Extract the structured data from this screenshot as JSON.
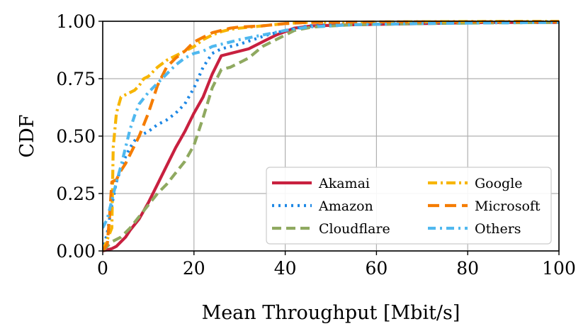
{
  "chart_data": {
    "type": "line",
    "xlabel": "Mean Throughput [Mbit/s]",
    "ylabel": "CDF",
    "xlim": [
      0,
      100
    ],
    "ylim": [
      0,
      1
    ],
    "x_ticks": [
      0,
      20,
      40,
      60,
      80,
      100
    ],
    "x_tick_labels": [
      "0",
      "20",
      "40",
      "60",
      "80",
      "100"
    ],
    "y_ticks": [
      0,
      0.25,
      0.5,
      0.75,
      1.0
    ],
    "y_tick_labels": [
      "0.00",
      "0.25",
      "0.50",
      "0.75",
      "1.00"
    ],
    "grid": true,
    "legend_position": "lower-right",
    "series": [
      {
        "name": "Akamai",
        "color": "#c8203f",
        "dash": "solid",
        "points": [
          [
            0,
            0
          ],
          [
            1,
            0.005
          ],
          [
            2,
            0.01
          ],
          [
            3,
            0.02
          ],
          [
            4,
            0.04
          ],
          [
            5,
            0.06
          ],
          [
            6,
            0.09
          ],
          [
            8,
            0.14
          ],
          [
            10,
            0.21
          ],
          [
            12,
            0.29
          ],
          [
            14,
            0.37
          ],
          [
            16,
            0.45
          ],
          [
            18,
            0.52
          ],
          [
            20,
            0.6
          ],
          [
            22,
            0.67
          ],
          [
            24,
            0.77
          ],
          [
            26,
            0.85
          ],
          [
            28,
            0.86
          ],
          [
            30,
            0.87
          ],
          [
            32,
            0.88
          ],
          [
            35,
            0.91
          ],
          [
            38,
            0.94
          ],
          [
            42,
            0.97
          ],
          [
            46,
            0.98
          ],
          [
            55,
            0.985
          ],
          [
            70,
            0.99
          ],
          [
            85,
            0.995
          ],
          [
            100,
            0.995
          ]
        ]
      },
      {
        "name": "Amazon",
        "color": "#1e88e5",
        "dash": "dotted",
        "points": [
          [
            0,
            0
          ],
          [
            1,
            0.08
          ],
          [
            2,
            0.2
          ],
          [
            3,
            0.3
          ],
          [
            4,
            0.36
          ],
          [
            5,
            0.41
          ],
          [
            6,
            0.45
          ],
          [
            7,
            0.48
          ],
          [
            8,
            0.5
          ],
          [
            10,
            0.52
          ],
          [
            12,
            0.55
          ],
          [
            14,
            0.57
          ],
          [
            16,
            0.6
          ],
          [
            18,
            0.64
          ],
          [
            20,
            0.71
          ],
          [
            22,
            0.8
          ],
          [
            24,
            0.86
          ],
          [
            26,
            0.88
          ],
          [
            28,
            0.89
          ],
          [
            30,
            0.9
          ],
          [
            33,
            0.92
          ],
          [
            36,
            0.94
          ],
          [
            40,
            0.96
          ],
          [
            45,
            0.98
          ],
          [
            55,
            0.99
          ],
          [
            70,
            0.995
          ],
          [
            100,
            0.998
          ]
        ]
      },
      {
        "name": "Cloudflare",
        "color": "#8fa960",
        "dash": "dashed",
        "points": [
          [
            0,
            0
          ],
          [
            1,
            0.02
          ],
          [
            2,
            0.04
          ],
          [
            4,
            0.06
          ],
          [
            6,
            0.1
          ],
          [
            8,
            0.15
          ],
          [
            10,
            0.2
          ],
          [
            12,
            0.25
          ],
          [
            14,
            0.29
          ],
          [
            16,
            0.34
          ],
          [
            18,
            0.39
          ],
          [
            20,
            0.46
          ],
          [
            22,
            0.58
          ],
          [
            24,
            0.71
          ],
          [
            26,
            0.79
          ],
          [
            28,
            0.8
          ],
          [
            30,
            0.82
          ],
          [
            32,
            0.84
          ],
          [
            35,
            0.89
          ],
          [
            38,
            0.92
          ],
          [
            42,
            0.96
          ],
          [
            46,
            0.975
          ],
          [
            55,
            0.985
          ],
          [
            70,
            0.99
          ],
          [
            85,
            0.993
          ],
          [
            100,
            0.995
          ]
        ]
      },
      {
        "name": "Google",
        "color": "#f7b500",
        "dash": "dashdot",
        "points": [
          [
            0,
            0
          ],
          [
            1,
            0.05
          ],
          [
            2,
            0.1
          ],
          [
            2.3,
            0.45
          ],
          [
            3,
            0.6
          ],
          [
            4,
            0.67
          ],
          [
            5,
            0.68
          ],
          [
            6,
            0.69
          ],
          [
            7,
            0.7
          ],
          [
            8,
            0.72
          ],
          [
            9,
            0.75
          ],
          [
            10,
            0.76
          ],
          [
            12,
            0.8
          ],
          [
            14,
            0.83
          ],
          [
            16,
            0.85
          ],
          [
            18,
            0.87
          ],
          [
            20,
            0.89
          ],
          [
            22,
            0.92
          ],
          [
            24,
            0.94
          ],
          [
            26,
            0.955
          ],
          [
            28,
            0.965
          ],
          [
            30,
            0.97
          ],
          [
            35,
            0.98
          ],
          [
            40,
            0.99
          ],
          [
            45,
            0.995
          ],
          [
            60,
            0.997
          ],
          [
            80,
            0.999
          ],
          [
            100,
            1.0
          ]
        ]
      },
      {
        "name": "Microsoft",
        "color": "#f57c00",
        "dash": "longdash",
        "points": [
          [
            0,
            0
          ],
          [
            1,
            0.03
          ],
          [
            1.5,
            0.15
          ],
          [
            2,
            0.3
          ],
          [
            3,
            0.31
          ],
          [
            4,
            0.35
          ],
          [
            5,
            0.38
          ],
          [
            6,
            0.42
          ],
          [
            8,
            0.5
          ],
          [
            10,
            0.6
          ],
          [
            12,
            0.72
          ],
          [
            14,
            0.8
          ],
          [
            16,
            0.84
          ],
          [
            18,
            0.87
          ],
          [
            20,
            0.91
          ],
          [
            22,
            0.93
          ],
          [
            24,
            0.95
          ],
          [
            26,
            0.96
          ],
          [
            28,
            0.97
          ],
          [
            30,
            0.975
          ],
          [
            35,
            0.98
          ],
          [
            40,
            0.99
          ],
          [
            45,
            0.995
          ],
          [
            60,
            0.997
          ],
          [
            100,
            0.998
          ]
        ]
      },
      {
        "name": "Others",
        "color": "#4fb8ef",
        "dash": "dashdot2",
        "points": [
          [
            0,
            0.1
          ],
          [
            1,
            0.14
          ],
          [
            2,
            0.22
          ],
          [
            3,
            0.3
          ],
          [
            4,
            0.37
          ],
          [
            5,
            0.45
          ],
          [
            6,
            0.53
          ],
          [
            7,
            0.59
          ],
          [
            8,
            0.64
          ],
          [
            10,
            0.69
          ],
          [
            12,
            0.73
          ],
          [
            14,
            0.77
          ],
          [
            16,
            0.81
          ],
          [
            18,
            0.84
          ],
          [
            20,
            0.86
          ],
          [
            22,
            0.87
          ],
          [
            24,
            0.89
          ],
          [
            26,
            0.9
          ],
          [
            28,
            0.91
          ],
          [
            30,
            0.92
          ],
          [
            35,
            0.94
          ],
          [
            40,
            0.96
          ],
          [
            45,
            0.975
          ],
          [
            55,
            0.985
          ],
          [
            70,
            0.99
          ],
          [
            85,
            0.993
          ],
          [
            100,
            0.995
          ]
        ]
      }
    ]
  }
}
